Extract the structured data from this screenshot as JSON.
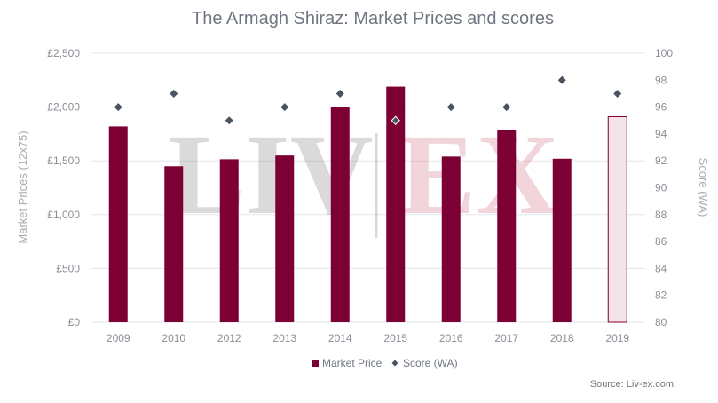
{
  "chart_data": {
    "type": "bar",
    "title": "The Armagh Shiraz: Market Prices and scores",
    "categories": [
      "2009",
      "2010",
      "2012",
      "2013",
      "2014",
      "2015",
      "2016",
      "2017",
      "2018",
      "2019"
    ],
    "series": [
      {
        "name": "Market Price",
        "axis": "left",
        "type": "bar",
        "values": [
          1820,
          1450,
          1515,
          1550,
          2000,
          2190,
          1540,
          1790,
          1520,
          1910
        ],
        "color": "#7d0034",
        "highlight_color": "#f5e3ea",
        "highlight_category": "2019"
      },
      {
        "name": "Score (WA)",
        "axis": "right",
        "type": "scatter",
        "values": [
          96,
          97,
          95,
          96,
          97,
          95,
          96,
          96,
          98,
          97
        ],
        "color": "#4a5360"
      }
    ],
    "ylabel": "Market Prices (12x75)",
    "ylabel_right": "Score (WA)",
    "ylim": [
      0,
      2500
    ],
    "ylim_right": [
      80,
      100
    ],
    "yticks": [
      "£0",
      "£500",
      "£1,000",
      "£1,500",
      "£2,000",
      "£2,500"
    ],
    "yticks_right": [
      "80",
      "82",
      "84",
      "86",
      "88",
      "90",
      "92",
      "94",
      "96",
      "98",
      "100"
    ],
    "grid": true,
    "legend": "bottom-center",
    "watermark": {
      "left": "LIV",
      "right": "EX"
    },
    "source": "Source: Liv-ex.com"
  }
}
